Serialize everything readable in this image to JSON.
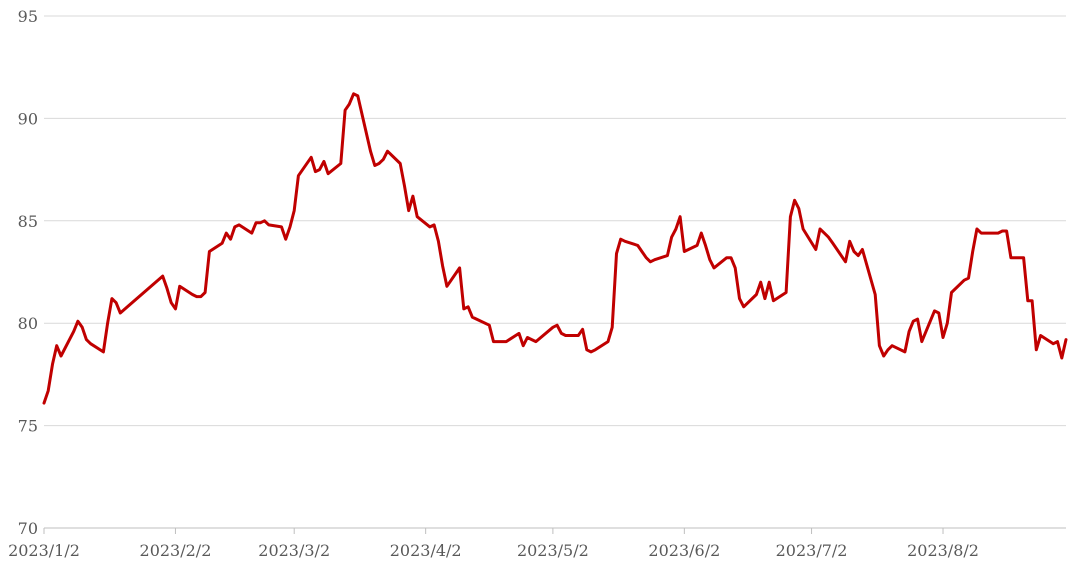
{
  "chart_data": {
    "type": "line",
    "title": "",
    "xlabel": "",
    "ylabel": "",
    "ylim": [
      70,
      95
    ],
    "yticks": [
      "70",
      "75",
      "80",
      "85",
      "90",
      "95"
    ],
    "xticks": [
      "2023/1/2",
      "2023/2/2",
      "2023/3/2",
      "2023/4/2",
      "2023/5/2",
      "2023/6/2",
      "2023/7/2",
      "2023/8/2"
    ],
    "grid": true,
    "legend": "none",
    "line_color": "#c00000",
    "series": [
      {
        "x": [
          "2023-01-02",
          "2023-01-03",
          "2023-01-04",
          "2023-01-05",
          "2023-01-06",
          "2023-01-09",
          "2023-01-10",
          "2023-01-11",
          "2023-01-12",
          "2023-01-13",
          "2023-01-16",
          "2023-01-17",
          "2023-01-18",
          "2023-01-19",
          "2023-01-20",
          "2023-01-30",
          "2023-01-31",
          "2023-02-01",
          "2023-02-02",
          "2023-02-03",
          "2023-02-06",
          "2023-02-07",
          "2023-02-08",
          "2023-02-09",
          "2023-02-10",
          "2023-02-13",
          "2023-02-14",
          "2023-02-15",
          "2023-02-16",
          "2023-02-17",
          "2023-02-20",
          "2023-02-21",
          "2023-02-22",
          "2023-02-23",
          "2023-02-24",
          "2023-02-27",
          "2023-02-28",
          "2023-03-01",
          "2023-03-02",
          "2023-03-03",
          "2023-03-06",
          "2023-03-07",
          "2023-03-08",
          "2023-03-09",
          "2023-03-10",
          "2023-03-13",
          "2023-03-14",
          "2023-03-15",
          "2023-03-16",
          "2023-03-17",
          "2023-03-20",
          "2023-03-21",
          "2023-03-22",
          "2023-03-23",
          "2023-03-24",
          "2023-03-27",
          "2023-03-28",
          "2023-03-29",
          "2023-03-30",
          "2023-03-31",
          "2023-04-03",
          "2023-04-04",
          "2023-04-05",
          "2023-04-06",
          "2023-04-07",
          "2023-04-10",
          "2023-04-11",
          "2023-04-12",
          "2023-04-13",
          "2023-04-14",
          "2023-04-17",
          "2023-04-18",
          "2023-04-19",
          "2023-04-20",
          "2023-04-21",
          "2023-04-24",
          "2023-04-25",
          "2023-04-26",
          "2023-04-27",
          "2023-04-28",
          "2023-05-02",
          "2023-05-03",
          "2023-05-04",
          "2023-05-05",
          "2023-05-08",
          "2023-05-09",
          "2023-05-10",
          "2023-05-11",
          "2023-05-12",
          "2023-05-15",
          "2023-05-16",
          "2023-05-17",
          "2023-05-18",
          "2023-05-19",
          "2023-05-22",
          "2023-05-23",
          "2023-05-24",
          "2023-05-25",
          "2023-05-26",
          "2023-05-29",
          "2023-05-30",
          "2023-05-31",
          "2023-06-01",
          "2023-06-02",
          "2023-06-05",
          "2023-06-06",
          "2023-06-07",
          "2023-06-08",
          "2023-06-09",
          "2023-06-12",
          "2023-06-13",
          "2023-06-14",
          "2023-06-15",
          "2023-06-16",
          "2023-06-19",
          "2023-06-20",
          "2023-06-21",
          "2023-06-22",
          "2023-06-23",
          "2023-06-26",
          "2023-06-27",
          "2023-06-28",
          "2023-06-29",
          "2023-06-30",
          "2023-07-03",
          "2023-07-04",
          "2023-07-05",
          "2023-07-06",
          "2023-07-07",
          "2023-07-10",
          "2023-07-11",
          "2023-07-12",
          "2023-07-13",
          "2023-07-14",
          "2023-07-17",
          "2023-07-18",
          "2023-07-19",
          "2023-07-20",
          "2023-07-21",
          "2023-07-24",
          "2023-07-25",
          "2023-07-26",
          "2023-07-27",
          "2023-07-28",
          "2023-07-31",
          "2023-08-01",
          "2023-08-02",
          "2023-08-03",
          "2023-08-04",
          "2023-08-07",
          "2023-08-08",
          "2023-08-09",
          "2023-08-10",
          "2023-08-11",
          "2023-08-14",
          "2023-08-15",
          "2023-08-16",
          "2023-08-17",
          "2023-08-18",
          "2023-08-21",
          "2023-08-22",
          "2023-08-23",
          "2023-08-24",
          "2023-08-25",
          "2023-08-28",
          "2023-08-29",
          "2023-08-30",
          "2023-08-31"
        ],
        "values": [
          76.1,
          76.7,
          78.0,
          78.9,
          78.4,
          79.6,
          80.1,
          79.8,
          79.2,
          79.0,
          78.6,
          80.0,
          81.2,
          81.0,
          80.5,
          82.3,
          81.7,
          81.0,
          80.7,
          81.8,
          81.4,
          81.3,
          81.3,
          81.5,
          83.5,
          83.9,
          84.4,
          84.1,
          84.7,
          84.8,
          84.4,
          84.9,
          84.9,
          85.0,
          84.8,
          84.7,
          84.1,
          84.7,
          85.5,
          87.2,
          88.1,
          87.4,
          87.5,
          87.9,
          87.3,
          87.8,
          90.4,
          90.7,
          91.2,
          91.1,
          88.4,
          87.7,
          87.8,
          88.0,
          88.4,
          87.8,
          86.7,
          85.5,
          86.2,
          85.2,
          84.7,
          84.8,
          84.0,
          82.8,
          81.8,
          82.7,
          80.7,
          80.8,
          80.3,
          80.2,
          79.9,
          79.1,
          79.1,
          79.1,
          79.1,
          79.5,
          78.9,
          79.3,
          79.2,
          79.1,
          79.8,
          79.9,
          79.5,
          79.4,
          79.4,
          79.7,
          78.7,
          78.6,
          78.7,
          79.1,
          79.8,
          83.4,
          84.1,
          84.0,
          83.8,
          83.5,
          83.2,
          83.0,
          83.1,
          83.3,
          84.2,
          84.6,
          85.2,
          83.5,
          83.8,
          84.4,
          83.8,
          83.1,
          82.7,
          83.2,
          83.2,
          82.7,
          81.2,
          80.8,
          81.4,
          82.0,
          81.2,
          82.0,
          81.1,
          81.5,
          85.2,
          86.0,
          85.6,
          84.6,
          83.6,
          84.6,
          84.4,
          84.2,
          83.9,
          83.0,
          84.0,
          83.5,
          83.3,
          83.6,
          81.4,
          78.9,
          78.4,
          78.7,
          78.9,
          78.6,
          79.6,
          80.1,
          80.2,
          79.1,
          80.6,
          80.5,
          79.3,
          80.0,
          81.5,
          82.1,
          82.2,
          83.5,
          84.6,
          84.4,
          84.4,
          84.4,
          84.5,
          84.5,
          83.2,
          83.2,
          81.1,
          81.1,
          78.7,
          79.4,
          79.0,
          79.1,
          78.3,
          79.2
        ]
      }
    ]
  }
}
